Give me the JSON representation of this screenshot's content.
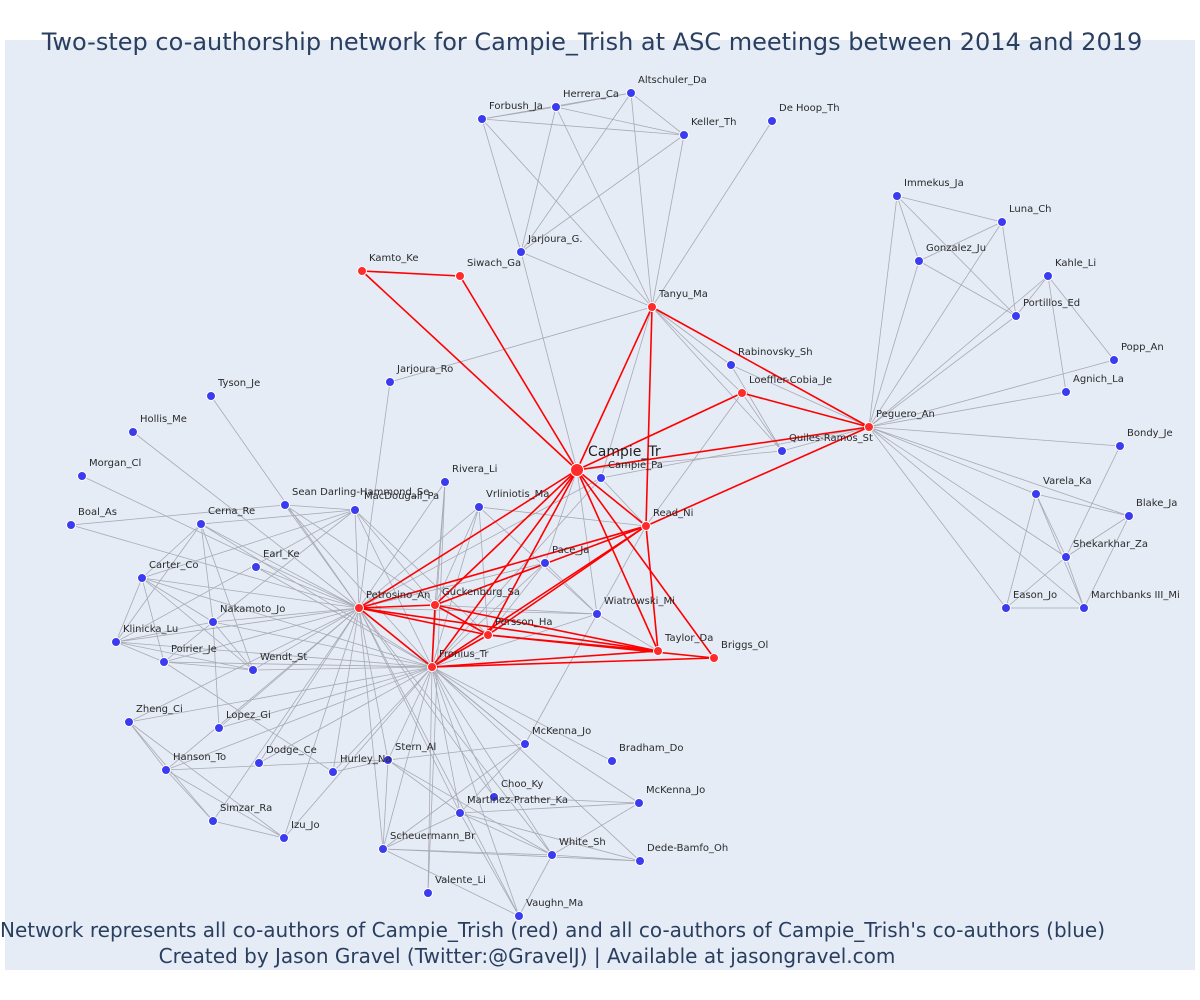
{
  "title": "Two-step co-authorship network for Campie_Trish at ASC meetings between 2014 and 2019",
  "footer": {
    "line1": "Network represents all co-authors of Campie_Trish (red) and all co-authors of Campie_Trish's co-authors (blue)",
    "line2": "Created by Jason Gravel (Twitter:@GravelJ) | Available at jasongravel.com"
  },
  "colors": {
    "background": "#e5ecf6",
    "red_node": "#ff2a2a",
    "blue_node": "#3b3bf0",
    "red_edge": "#ff0000",
    "grey_edge": "#a9a9b3",
    "text": "#2a3f5f"
  },
  "nodes": [
    {
      "id": "Campie_Tr",
      "group": "ego"
    },
    {
      "id": "Tanyu_Ma",
      "group": "red"
    },
    {
      "id": "Kamto_Ke",
      "group": "red"
    },
    {
      "id": "Siwach_Ga",
      "group": "red"
    },
    {
      "id": "Loeffler-Cobia_Je",
      "group": "red"
    },
    {
      "id": "Peguero_An",
      "group": "red"
    },
    {
      "id": "Read_Ni",
      "group": "red"
    },
    {
      "id": "Petrosino_An",
      "group": "red"
    },
    {
      "id": "Guckenburg_Sa",
      "group": "red"
    },
    {
      "id": "Persson_Ha",
      "group": "red"
    },
    {
      "id": "Fronius_Tr",
      "group": "red"
    },
    {
      "id": "Taylor_Da",
      "group": "red"
    },
    {
      "id": "Briggs_Ol",
      "group": "red"
    },
    {
      "id": "Altschuler_Da",
      "group": "blue"
    },
    {
      "id": "Herrera_Ca",
      "group": "blue"
    },
    {
      "id": "Forbush_Ja",
      "group": "blue"
    },
    {
      "id": "Keller_Th",
      "group": "blue"
    },
    {
      "id": "De Hoop_Th",
      "group": "blue"
    },
    {
      "id": "Jarjoura_G.",
      "group": "blue"
    },
    {
      "id": "Immekus_Ja",
      "group": "blue"
    },
    {
      "id": "Luna_Ch",
      "group": "blue"
    },
    {
      "id": "Gonzalez_Ju",
      "group": "blue"
    },
    {
      "id": "Kahle_Li",
      "group": "blue"
    },
    {
      "id": "Portillos_Ed",
      "group": "blue"
    },
    {
      "id": "Popp_An",
      "group": "blue"
    },
    {
      "id": "Agnich_La",
      "group": "blue"
    },
    {
      "id": "Bondy_Je",
      "group": "blue"
    },
    {
      "id": "Varela_Ka",
      "group": "blue"
    },
    {
      "id": "Blake_Ja",
      "group": "blue"
    },
    {
      "id": "Shekarkhar_Za",
      "group": "blue"
    },
    {
      "id": "Eason_Jo",
      "group": "blue"
    },
    {
      "id": "Marchbanks III_Mi",
      "group": "blue"
    },
    {
      "id": "Rabinovsky_Sh",
      "group": "blue"
    },
    {
      "id": "Quiles-Ramos_St",
      "group": "blue"
    },
    {
      "id": "Campie_Pa",
      "group": "blue"
    },
    {
      "id": "Jarjoura_Ro",
      "group": "blue"
    },
    {
      "id": "Tyson_Je",
      "group": "blue"
    },
    {
      "id": "Hollis_Me",
      "group": "blue"
    },
    {
      "id": "Morgan_Cl",
      "group": "blue"
    },
    {
      "id": "Boal_As",
      "group": "blue"
    },
    {
      "id": "Cerna_Re",
      "group": "blue"
    },
    {
      "id": "Sean Darling-Hammond_Se",
      "group": "blue"
    },
    {
      "id": "MacDougall_Pa",
      "group": "blue"
    },
    {
      "id": "Rivera_Li",
      "group": "blue"
    },
    {
      "id": "Vrliniotis_Ma",
      "group": "blue"
    },
    {
      "id": "Earl_Ke",
      "group": "blue"
    },
    {
      "id": "Carter_Co",
      "group": "blue"
    },
    {
      "id": "Nakamoto_Jo",
      "group": "blue"
    },
    {
      "id": "Klinicka_Lu",
      "group": "blue"
    },
    {
      "id": "Poirier_Je",
      "group": "blue"
    },
    {
      "id": "Wendt_St",
      "group": "blue"
    },
    {
      "id": "Pace_Ja",
      "group": "blue"
    },
    {
      "id": "Wiatrowski_Mi",
      "group": "blue"
    },
    {
      "id": "Zheng_Ci",
      "group": "blue"
    },
    {
      "id": "Lopez_Gi",
      "group": "blue"
    },
    {
      "id": "Hanson_To",
      "group": "blue"
    },
    {
      "id": "Dodge_Ce",
      "group": "blue"
    },
    {
      "id": "Stern_Al",
      "group": "blue"
    },
    {
      "id": "Hurley_Na",
      "group": "blue"
    },
    {
      "id": "McKenna_Jo",
      "group": "blue"
    },
    {
      "id": "Bradham_Do",
      "group": "blue"
    },
    {
      "id": "Choo_Ky",
      "group": "blue"
    },
    {
      "id": "Martinez-Prather_Ka",
      "group": "blue"
    },
    {
      "id": "McKenna_Jo ",
      "group": "blue"
    },
    {
      "id": "Simzar_Ra",
      "group": "blue"
    },
    {
      "id": "Izu_Jo",
      "group": "blue"
    },
    {
      "id": "Scheuermann_Br",
      "group": "blue"
    },
    {
      "id": "White_Sh",
      "group": "blue"
    },
    {
      "id": "Dede-Bamfo_Oh",
      "group": "blue"
    },
    {
      "id": "Valente_Li",
      "group": "blue"
    },
    {
      "id": "Vaughn_Ma",
      "group": "blue"
    }
  ],
  "red_edges": [
    [
      "Campie_Tr",
      "Kamto_Ke"
    ],
    [
      "Kamto_Ke",
      "Siwach_Ga"
    ],
    [
      "Siwach_Ga",
      "Campie_Tr"
    ],
    [
      "Campie_Tr",
      "Tanyu_Ma"
    ],
    [
      "Tanyu_Ma",
      "Peguero_An"
    ],
    [
      "Tanyu_Ma",
      "Read_Ni"
    ],
    [
      "Campie_Tr",
      "Loeffler-Cobia_Je"
    ],
    [
      "Loeffler-Cobia_Je",
      "Peguero_An"
    ],
    [
      "Campie_Tr",
      "Peguero_An"
    ],
    [
      "Read_Ni",
      "Peguero_An"
    ],
    [
      "Campie_Tr",
      "Read_Ni"
    ],
    [
      "Campie_Tr",
      "Petrosino_An"
    ],
    [
      "Campie_Tr",
      "Guckenburg_Sa"
    ],
    [
      "Campie_Tr",
      "Persson_Ha"
    ],
    [
      "Campie_Tr",
      "Fronius_Tr"
    ],
    [
      "Campie_Tr",
      "Taylor_Da"
    ],
    [
      "Campie_Tr",
      "Briggs_Ol"
    ],
    [
      "Read_Ni",
      "Petrosino_An"
    ],
    [
      "Read_Ni",
      "Guckenburg_Sa"
    ],
    [
      "Read_Ni",
      "Persson_Ha"
    ],
    [
      "Read_Ni",
      "Fronius_Tr"
    ],
    [
      "Read_Ni",
      "Taylor_Da"
    ],
    [
      "Petrosino_An",
      "Guckenburg_Sa"
    ],
    [
      "Petrosino_An",
      "Persson_Ha"
    ],
    [
      "Petrosino_An",
      "Fronius_Tr"
    ],
    [
      "Guckenburg_Sa",
      "Persson_Ha"
    ],
    [
      "Guckenburg_Sa",
      "Fronius_Tr"
    ],
    [
      "Persson_Ha",
      "Fronius_Tr"
    ],
    [
      "Guckenburg_Sa",
      "Taylor_Da"
    ],
    [
      "Persson_Ha",
      "Taylor_Da"
    ],
    [
      "Fronius_Tr",
      "Taylor_Da"
    ],
    [
      "Fronius_Tr",
      "Briggs_Ol"
    ],
    [
      "Persson_Ha",
      "Briggs_Ol"
    ],
    [
      "Petrosino_An",
      "Taylor_Da"
    ]
  ],
  "grey_edges": [
    [
      "Forbush_Ja",
      "Herrera_Ca"
    ],
    [
      "Forbush_Ja",
      "Altschuler_Da"
    ],
    [
      "Herrera_Ca",
      "Altschuler_Da"
    ],
    [
      "Herrera_Ca",
      "Keller_Th"
    ],
    [
      "Forbush_Ja",
      "Keller_Th"
    ],
    [
      "Altschuler_Da",
      "Keller_Th"
    ],
    [
      "Forbush_Ja",
      "Jarjoura_G."
    ],
    [
      "Herrera_Ca",
      "Jarjoura_G."
    ],
    [
      "Altschuler_Da",
      "Jarjoura_G."
    ],
    [
      "Keller_Th",
      "Jarjoura_G."
    ],
    [
      "Forbush_Ja",
      "Tanyu_Ma"
    ],
    [
      "Herrera_Ca",
      "Tanyu_Ma"
    ],
    [
      "Altschuler_Da",
      "Tanyu_Ma"
    ],
    [
      "Keller_Th",
      "Tanyu_Ma"
    ],
    [
      "De Hoop_Th",
      "Tanyu_Ma"
    ],
    [
      "Jarjoura_G.",
      "Tanyu_Ma"
    ],
    [
      "Jarjoura_G.",
      "Campie_Tr"
    ],
    [
      "Tanyu_Ma",
      "Jarjoura_Ro"
    ],
    [
      "Tanyu_Ma",
      "Rabinovsky_Sh"
    ],
    [
      "Tanyu_Ma",
      "Quiles-Ramos_St"
    ],
    [
      "Tanyu_Ma",
      "Loeffler-Cobia_Je"
    ],
    [
      "Tanyu_Ma",
      "Campie_Pa"
    ],
    [
      "Jarjoura_Ro",
      "Petrosino_An"
    ],
    [
      "Tyson_Je",
      "Petrosino_An"
    ],
    [
      "Immekus_Ja",
      "Luna_Ch"
    ],
    [
      "Immekus_Ja",
      "Gonzalez_Ju"
    ],
    [
      "Immekus_Ja",
      "Portillos_Ed"
    ],
    [
      "Immekus_Ja",
      "Peguero_An"
    ],
    [
      "Luna_Ch",
      "Gonzalez_Ju"
    ],
    [
      "Luna_Ch",
      "Peguero_An"
    ],
    [
      "Luna_Ch",
      "Portillos_Ed"
    ],
    [
      "Gonzalez_Ju",
      "Portillos_Ed"
    ],
    [
      "Gonzalez_Ju",
      "Peguero_An"
    ],
    [
      "Kahle_Li",
      "Portillos_Ed"
    ],
    [
      "Kahle_Li",
      "Agnich_La"
    ],
    [
      "Kahle_Li",
      "Popp_An"
    ],
    [
      "Kahle_Li",
      "Peguero_An"
    ],
    [
      "Portillos_Ed",
      "Peguero_An"
    ],
    [
      "Popp_An",
      "Peguero_An"
    ],
    [
      "Agnich_La",
      "Peguero_An"
    ],
    [
      "Bondy_Je",
      "Peguero_An"
    ],
    [
      "Bondy_Je",
      "Shekarkhar_Za"
    ],
    [
      "Varela_Ka",
      "Peguero_An"
    ],
    [
      "Varela_Ka",
      "Blake_Ja"
    ],
    [
      "Varela_Ka",
      "Shekarkhar_Za"
    ],
    [
      "Varela_Ka",
      "Eason_Jo"
    ],
    [
      "Varela_Ka",
      "Marchbanks III_Mi"
    ],
    [
      "Blake_Ja",
      "Shekarkhar_Za"
    ],
    [
      "Blake_Ja",
      "Peguero_An"
    ],
    [
      "Blake_Ja",
      "Marchbanks III_Mi"
    ],
    [
      "Shekarkhar_Za",
      "Eason_Jo"
    ],
    [
      "Shekarkhar_Za",
      "Marchbanks III_Mi"
    ],
    [
      "Shekarkhar_Za",
      "Peguero_An"
    ],
    [
      "Eason_Jo",
      "Marchbanks III_Mi"
    ],
    [
      "Eason_Jo",
      "Peguero_An"
    ],
    [
      "Marchbanks III_Mi",
      "Peguero_An"
    ],
    [
      "Rabinovsky_Sh",
      "Peguero_An"
    ],
    [
      "Rabinovsky_Sh",
      "Quiles-Ramos_St"
    ],
    [
      "Quiles-Ramos_St",
      "Peguero_An"
    ],
    [
      "Quiles-Ramos_St",
      "Campie_Tr"
    ],
    [
      "Loeffler-Cobia_Je",
      "Quiles-Ramos_St"
    ],
    [
      "Loeffler-Cobia_Je",
      "Read_Ni"
    ],
    [
      "Campie_Pa",
      "Read_Ni"
    ],
    [
      "Campie_Pa",
      "Petrosino_An"
    ],
    [
      "Campie_Pa",
      "Peguero_An"
    ],
    [
      "Campie_Pa",
      "Fronius_Tr"
    ],
    [
      "Hollis_Me",
      "Petrosino_An"
    ],
    [
      "Morgan_Cl",
      "Petrosino_An"
    ],
    [
      "Boal_As",
      "Petrosino_An"
    ],
    [
      "Boal_As",
      "Sean Darling-Hammond_Se"
    ],
    [
      "Cerna_Re",
      "Petrosino_An"
    ],
    [
      "Cerna_Re",
      "Carter_Co"
    ],
    [
      "Cerna_Re",
      "Nakamoto_Jo"
    ],
    [
      "Cerna_Re",
      "Klinicka_Lu"
    ],
    [
      "Cerna_Re",
      "Wendt_St"
    ],
    [
      "Cerna_Re",
      "Fronius_Tr"
    ],
    [
      "Cerna_Re",
      "MacDougall_Pa"
    ],
    [
      "Sean Darling-Hammond_Se",
      "Petrosino_An"
    ],
    [
      "Sean Darling-Hammond_Se",
      "Fronius_Tr"
    ],
    [
      "Sean Darling-Hammond_Se",
      "MacDougall_Pa"
    ],
    [
      "Sean Darling-Hammond_Se",
      "Guckenburg_Sa"
    ],
    [
      "MacDougall_Pa",
      "Petrosino_An"
    ],
    [
      "MacDougall_Pa",
      "Fronius_Tr"
    ],
    [
      "MacDougall_Pa",
      "Guckenburg_Sa"
    ],
    [
      "MacDougall_Pa",
      "Persson_Ha"
    ],
    [
      "MacDougall_Pa",
      "Carter_Co"
    ],
    [
      "MacDougall_Pa",
      "Nakamoto_Jo"
    ],
    [
      "MacDougall_Pa",
      "Klinicka_Lu"
    ],
    [
      "Rivera_Li",
      "Petrosino_An"
    ],
    [
      "Rivera_Li",
      "Fronius_Tr"
    ],
    [
      "Rivera_Li",
      "Guckenburg_Sa"
    ],
    [
      "Rivera_Li",
      "Valente_Li"
    ],
    [
      "Vrliniotis_Ma",
      "Petrosino_An"
    ],
    [
      "Vrliniotis_Ma",
      "Fronius_Tr"
    ],
    [
      "Vrliniotis_Ma",
      "Guckenburg_Sa"
    ],
    [
      "Vrliniotis_Ma",
      "Persson_Ha"
    ],
    [
      "Vrliniotis_Ma",
      "Wiatrowski_Mi"
    ],
    [
      "Vrliniotis_Ma",
      "Read_Ni"
    ],
    [
      "Earl_Ke",
      "Petrosino_An"
    ],
    [
      "Earl_Ke",
      "Fronius_Tr"
    ],
    [
      "Carter_Co",
      "Petrosino_An"
    ],
    [
      "Carter_Co",
      "Nakamoto_Jo"
    ],
    [
      "Carter_Co",
      "Klinicka_Lu"
    ],
    [
      "Carter_Co",
      "Poirier_Je"
    ],
    [
      "Carter_Co",
      "Wendt_St"
    ],
    [
      "Carter_Co",
      "Fronius_Tr"
    ],
    [
      "Nakamoto_Jo",
      "Petrosino_An"
    ],
    [
      "Nakamoto_Jo",
      "Klinicka_Lu"
    ],
    [
      "Nakamoto_Jo",
      "Poirier_Je"
    ],
    [
      "Nakamoto_Jo",
      "Wendt_St"
    ],
    [
      "Nakamoto_Jo",
      "Lopez_Gi"
    ],
    [
      "Nakamoto_Jo",
      "Fronius_Tr"
    ],
    [
      "Klinicka_Lu",
      "Petrosino_An"
    ],
    [
      "Klinicka_Lu",
      "Poirier_Je"
    ],
    [
      "Klinicka_Lu",
      "Wendt_St"
    ],
    [
      "Klinicka_Lu",
      "Fronius_Tr"
    ],
    [
      "Poirier_Je",
      "Petrosino_An"
    ],
    [
      "Poirier_Je",
      "Wendt_St"
    ],
    [
      "Poirier_Je",
      "Fronius_Tr"
    ],
    [
      "Poirier_Je",
      "Hurley_Na"
    ],
    [
      "Wendt_St",
      "Petrosino_An"
    ],
    [
      "Wendt_St",
      "Fronius_Tr"
    ],
    [
      "Pace_Ja",
      "Petrosino_An"
    ],
    [
      "Pace_Ja",
      "Fronius_Tr"
    ],
    [
      "Pace_Ja",
      "Guckenburg_Sa"
    ],
    [
      "Pace_Ja",
      "Persson_Ha"
    ],
    [
      "Pace_Ja",
      "Wiatrowski_Mi"
    ],
    [
      "Pace_Ja",
      "Campie_Tr"
    ],
    [
      "Wiatrowski_Mi",
      "Petrosino_An"
    ],
    [
      "Wiatrowski_Mi",
      "Guckenburg_Sa"
    ],
    [
      "Wiatrowski_Mi",
      "Fronius_Tr"
    ],
    [
      "Wiatrowski_Mi",
      "Campie_Tr"
    ],
    [
      "Zheng_Ci",
      "Petrosino_An"
    ],
    [
      "Zheng_Ci",
      "Hanson_To"
    ],
    [
      "Zheng_Ci",
      "Simzar_Ra"
    ],
    [
      "Zheng_Ci",
      "Izu_Jo"
    ],
    [
      "Zheng_Ci",
      "Fronius_Tr"
    ],
    [
      "Lopez_Gi",
      "Petrosino_An"
    ],
    [
      "Lopez_Gi",
      "Fronius_Tr"
    ],
    [
      "Hanson_To",
      "Petrosino_An"
    ],
    [
      "Hanson_To",
      "Simzar_Ra"
    ],
    [
      "Hanson_To",
      "Izu_Jo"
    ],
    [
      "Hanson_To",
      "Fronius_Tr"
    ],
    [
      "Hanson_To",
      "Stern_Al"
    ],
    [
      "Dodge_Ce",
      "Petrosino_An"
    ],
    [
      "Dodge_Ce",
      "Fronius_Tr"
    ],
    [
      "Simzar_Ra",
      "Petrosino_An"
    ],
    [
      "Simzar_Ra",
      "Izu_Jo"
    ],
    [
      "Izu_Jo",
      "Fronius_Tr"
    ],
    [
      "Izu_Jo",
      "Petrosino_An"
    ],
    [
      "Stern_Al",
      "Petrosino_An"
    ],
    [
      "Stern_Al",
      "Fronius_Tr"
    ],
    [
      "Stern_Al",
      "Hurley_Na"
    ],
    [
      "Stern_Al",
      "McKenna_Jo"
    ],
    [
      "Stern_Al",
      "Martinez-Prather_Ka"
    ],
    [
      "Stern_Al",
      "White_Sh"
    ],
    [
      "Stern_Al",
      "Scheuermann_Br"
    ],
    [
      "Hurley_Na",
      "Petrosino_An"
    ],
    [
      "Hurley_Na",
      "Fronius_Tr"
    ],
    [
      "McKenna_Jo",
      "Petrosino_An"
    ],
    [
      "McKenna_Jo",
      "Fronius_Tr"
    ],
    [
      "McKenna_Jo",
      "Scheuermann_Br"
    ],
    [
      "McKenna_Jo",
      "Martinez-Prather_Ka"
    ],
    [
      "McKenna_Jo",
      "Read_Ni"
    ],
    [
      "Bradham_Do",
      "Fronius_Tr"
    ],
    [
      "Choo_Ky",
      "Fronius_Tr"
    ],
    [
      "Choo_Ky",
      "Petrosino_An"
    ],
    [
      "Choo_Ky",
      "McKenna_Jo "
    ],
    [
      "Martinez-Prather_Ka",
      "Petrosino_An"
    ],
    [
      "Martinez-Prather_Ka",
      "Fronius_Tr"
    ],
    [
      "Martinez-Prather_Ka",
      "McKenna_Jo "
    ],
    [
      "Martinez-Prather_Ka",
      "White_Sh"
    ],
    [
      "Martinez-Prather_Ka",
      "Dede-Bamfo_Oh"
    ],
    [
      "Martinez-Prather_Ka",
      "Scheuermann_Br"
    ],
    [
      "Martinez-Prather_Ka",
      "Vaughn_Ma"
    ],
    [
      "McKenna_Jo ",
      "Fronius_Tr"
    ],
    [
      "McKenna_Jo ",
      "White_Sh"
    ],
    [
      "Scheuermann_Br",
      "Petrosino_An"
    ],
    [
      "Scheuermann_Br",
      "Fronius_Tr"
    ],
    [
      "Scheuermann_Br",
      "White_Sh"
    ],
    [
      "Scheuermann_Br",
      "Dede-Bamfo_Oh"
    ],
    [
      "Scheuermann_Br",
      "Vaughn_Ma"
    ],
    [
      "White_Sh",
      "Petrosino_An"
    ],
    [
      "White_Sh",
      "Fronius_Tr"
    ],
    [
      "White_Sh",
      "Dede-Bamfo_Oh"
    ],
    [
      "White_Sh",
      "Vaughn_Ma"
    ],
    [
      "Dede-Bamfo_Oh",
      "Fronius_Tr"
    ],
    [
      "Valente_Li",
      "Fronius_Tr"
    ],
    [
      "Vaughn_Ma",
      "Fronius_Tr"
    ],
    [
      "Vaughn_Ma",
      "Petrosino_An"
    ],
    [
      "Fronius_Tr",
      "Petrosino_An"
    ],
    [
      "Taylor_Da",
      "Wiatrowski_Mi"
    ]
  ]
}
